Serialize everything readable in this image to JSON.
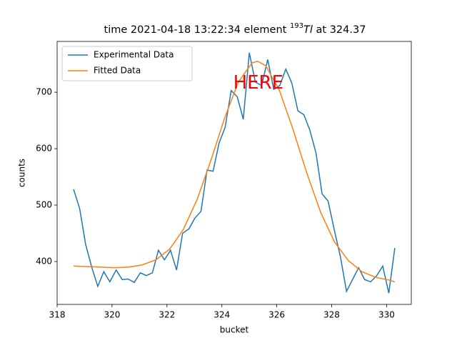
{
  "chart_data": {
    "type": "line",
    "title_parts": [
      "time 2021-04-18 13:22:34 element ",
      "193",
      "Tl",
      " at 324.37"
    ],
    "xlabel": "bucket",
    "ylabel": "counts",
    "xlim": [
      318.0,
      330.9
    ],
    "ylim": [
      324,
      790
    ],
    "xticks": [
      318,
      320,
      322,
      324,
      326,
      328,
      330
    ],
    "yticks": [
      400,
      500,
      600,
      700
    ],
    "legend": "upper left",
    "annotation": {
      "text": "HERE",
      "x": 325.33,
      "y": 716,
      "color": "#ff0000"
    },
    "series": [
      {
        "name": "Experimental Data",
        "color": "#1f77b4",
        "x": [
          318.6,
          318.82,
          319.04,
          319.26,
          319.48,
          319.7,
          319.92,
          320.15,
          320.37,
          320.59,
          320.81,
          321.03,
          321.25,
          321.47,
          321.69,
          321.91,
          322.13,
          322.35,
          322.57,
          322.8,
          323.02,
          323.24,
          323.46,
          323.68,
          323.9,
          324.12,
          324.34,
          324.56,
          324.78,
          325.0,
          325.22,
          325.45,
          325.67,
          325.89,
          326.11,
          326.33,
          326.55,
          326.77,
          326.99,
          327.21,
          327.43,
          327.65,
          327.87,
          328.1,
          328.32,
          328.54,
          328.76,
          328.98,
          329.2,
          329.42,
          329.64,
          329.86,
          330.08,
          330.3
        ],
        "values": [
          528,
          494,
          430,
          390,
          356,
          382,
          364,
          385,
          368,
          369,
          363,
          380,
          375,
          380,
          420,
          403,
          420,
          385,
          450,
          458,
          477,
          489,
          562,
          560,
          610,
          638,
          703,
          692,
          652,
          770,
          718,
          712,
          758,
          705,
          712,
          741,
          716,
          667,
          660,
          632,
          592,
          520,
          507,
          455,
          408,
          347,
          368,
          389,
          368,
          364,
          375,
          392,
          344,
          424
        ]
      },
      {
        "name": "Fitted Data",
        "color": "#ff7f0e",
        "x": [
          318.6,
          319.1,
          319.6,
          320.1,
          320.6,
          321.1,
          321.6,
          322.1,
          322.6,
          323.1,
          323.6,
          324.1,
          324.6,
          325.1,
          325.3,
          325.6,
          326.1,
          326.6,
          327.1,
          327.6,
          328.1,
          328.6,
          329.1,
          329.6,
          330.1,
          330.3
        ],
        "values": [
          392,
          391,
          390,
          389,
          390,
          394,
          403,
          422,
          457,
          510,
          579,
          654,
          718,
          752,
          755,
          747,
          703,
          633,
          556,
          487,
          435,
          402,
          382,
          372,
          367,
          364
        ]
      }
    ]
  }
}
